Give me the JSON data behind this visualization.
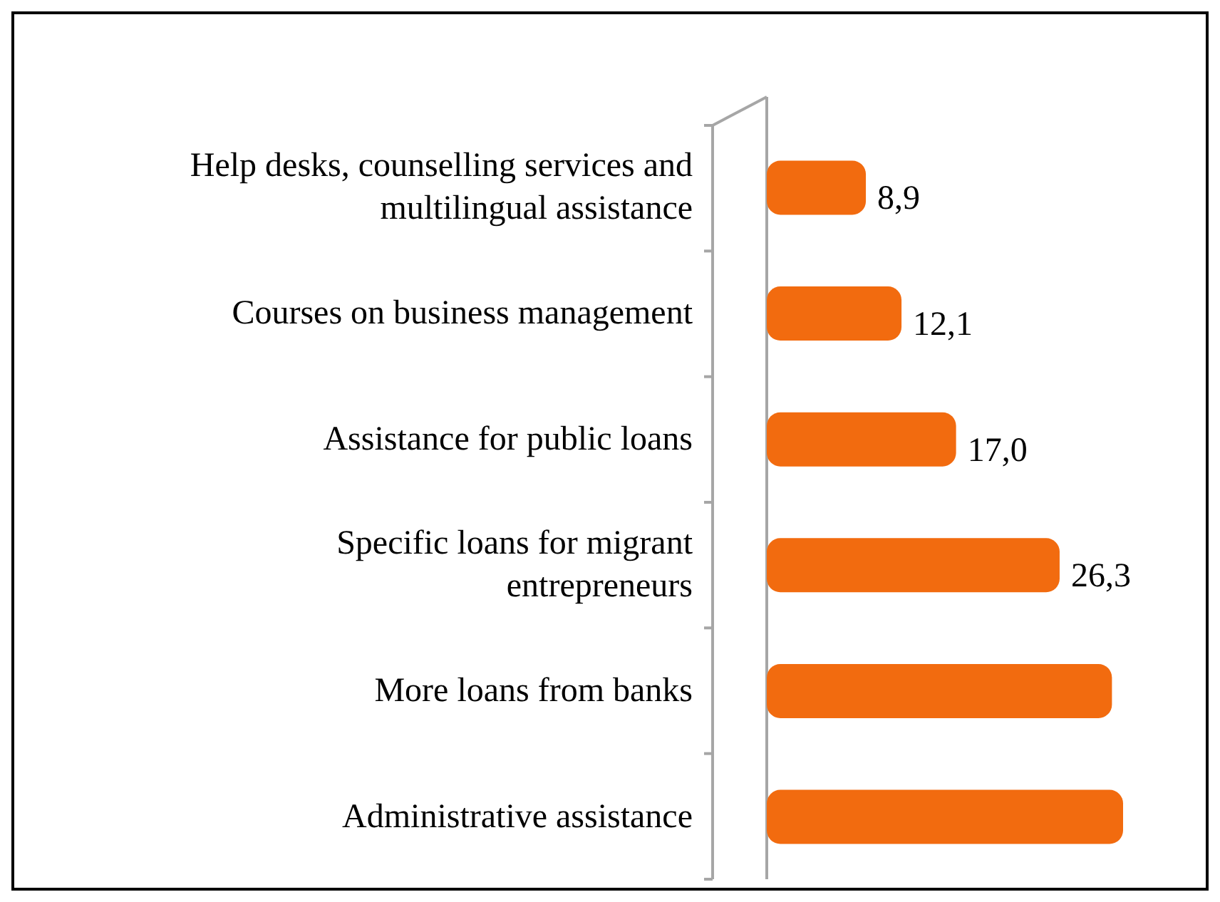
{
  "chart_data": {
    "type": "bar",
    "orientation": "horizontal",
    "categories": [
      "Help desks, counselling services and multilingual assistance",
      "Courses on business management",
      "Assistance for public loans",
      "Specific loans for migrant entrepreneurs",
      "More loans from banks",
      "Administrative assistance"
    ],
    "values": [
      8.9,
      12.1,
      17.0,
      26.3,
      31,
      32
    ],
    "value_labels": [
      "8,9",
      "12,1",
      "17,0",
      "26,3",
      null,
      null
    ],
    "color": "#f26b0f"
  }
}
